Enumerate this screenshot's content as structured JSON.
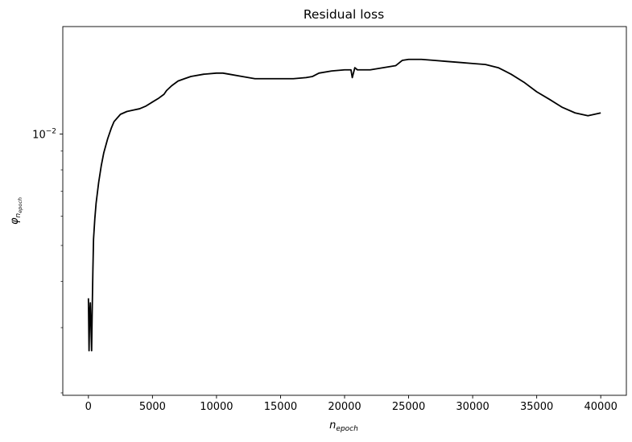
{
  "chart_data": {
    "type": "line",
    "title": "Residual loss",
    "xlabel": {
      "main": "n",
      "sub": "epoch"
    },
    "ylabel": {
      "main": "φ",
      "sub": "n",
      "subsub": "epoch"
    },
    "yscale": "log",
    "xlim": [
      -2000,
      42000
    ],
    "ylim": [
      0.00197,
      0.0195
    ],
    "grid": false,
    "line_color": "#000000",
    "x_ticks": [
      0,
      5000,
      10000,
      15000,
      20000,
      25000,
      30000,
      35000,
      40000
    ],
    "x_tick_labels": [
      "0",
      "5000",
      "10000",
      "15000",
      "20000",
      "25000",
      "30000",
      "35000",
      "40000"
    ],
    "y_ticks": [
      0.01
    ],
    "y_tick_labels": [
      {
        "base": "10",
        "exp": "−2"
      }
    ],
    "series": [
      {
        "x": [
          0,
          50,
          100,
          150,
          200,
          250,
          300,
          350,
          400,
          500,
          600,
          800,
          1000,
          1200,
          1500,
          1800,
          2000,
          2500,
          3000,
          3500,
          4000,
          4500,
          5000,
          5500,
          5900,
          6100,
          6500,
          7000,
          7500,
          8000,
          9000,
          10000,
          10500,
          11000,
          12000,
          13000,
          14000,
          15000,
          16000,
          17000,
          17500,
          18000,
          19000,
          20000,
          20500,
          20600,
          20800,
          21000,
          22000,
          23000,
          24000,
          24500,
          25000,
          26000,
          27000,
          28000,
          29000,
          30000,
          31000,
          32000,
          32500,
          33000,
          34000,
          35000,
          36000,
          37000,
          38000,
          39000,
          40000
        ],
        "y": [
          0.0036,
          0.0026,
          0.0033,
          0.0035,
          0.003,
          0.0026,
          0.0034,
          0.0043,
          0.0052,
          0.0059,
          0.0065,
          0.0074,
          0.0082,
          0.0089,
          0.0097,
          0.0104,
          0.0108,
          0.0113,
          0.0115,
          0.0116,
          0.0117,
          0.0119,
          0.0122,
          0.0125,
          0.0128,
          0.0131,
          0.0135,
          0.0139,
          0.0141,
          0.0143,
          0.0145,
          0.0146,
          0.0146,
          0.0145,
          0.0143,
          0.0141,
          0.0141,
          0.0141,
          0.0141,
          0.0142,
          0.0143,
          0.0146,
          0.0148,
          0.0149,
          0.0149,
          0.0142,
          0.0151,
          0.0149,
          0.0149,
          0.0151,
          0.0153,
          0.0158,
          0.0159,
          0.0159,
          0.0158,
          0.0157,
          0.0156,
          0.0155,
          0.0154,
          0.0151,
          0.0148,
          0.0145,
          0.0138,
          0.013,
          0.0124,
          0.0118,
          0.0114,
          0.0112,
          0.0114
        ]
      }
    ]
  }
}
